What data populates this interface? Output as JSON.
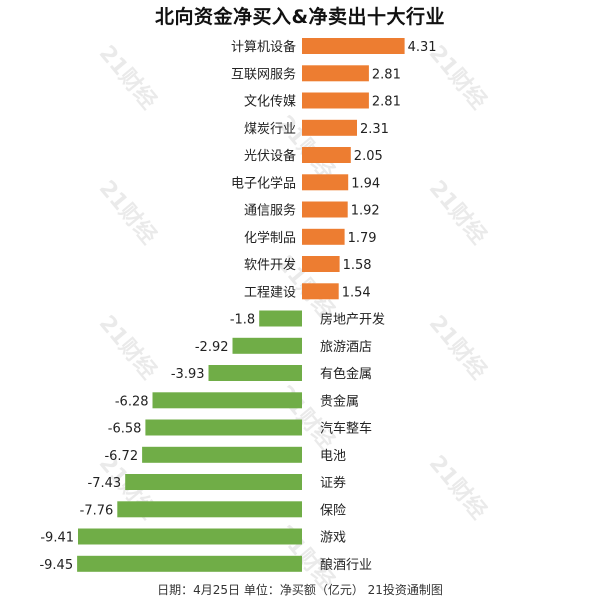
{
  "header": {
    "title": "北向资金净买入&净卖出十大行业"
  },
  "footer": {
    "caption": "日期：4月25日 单位：净买额（亿元） 21投资通制图"
  },
  "watermark": {
    "text": "21财经"
  },
  "colors": {
    "positive": "#ed7d31",
    "negative": "#70ad47",
    "text": "#222222"
  },
  "chart_data": {
    "type": "bar",
    "orientation": "horizontal",
    "title": "北向资金净买入&净卖出十大行业",
    "unit": "净买额（亿元）",
    "categories": [
      "计算机设备",
      "互联网服务",
      "文化传媒",
      "煤炭行业",
      "光伏设备",
      "电子化学品",
      "通信服务",
      "化学制品",
      "软件开发",
      "工程建设",
      "房地产开发",
      "旅游酒店",
      "有色金属",
      "贵金属",
      "汽车整车",
      "电池",
      "证券",
      "保险",
      "游戏",
      "酿酒行业"
    ],
    "values": [
      4.31,
      2.81,
      2.81,
      2.31,
      2.05,
      1.94,
      1.92,
      1.79,
      1.58,
      1.54,
      -1.8,
      -2.92,
      -3.93,
      -6.28,
      -6.58,
      -6.72,
      -7.43,
      -7.76,
      -9.41,
      -9.45
    ],
    "value_labels": [
      "4.31",
      "2.81",
      "2.81",
      "2.31",
      "2.05",
      "1.94",
      "1.92",
      "1.79",
      "1.58",
      "1.54",
      "-1.8",
      "-2.92",
      "-3.93",
      "-6.28",
      "-6.58",
      "-6.72",
      "-7.43",
      "-7.76",
      "-9.41",
      "-9.45"
    ],
    "grid": false,
    "legend": "none"
  }
}
